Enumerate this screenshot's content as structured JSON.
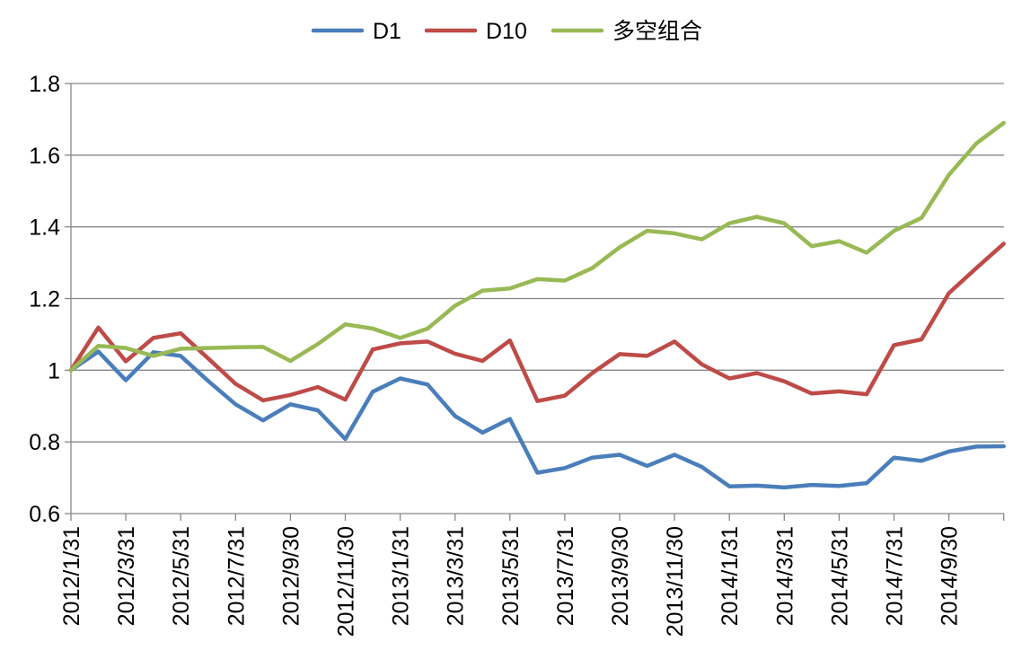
{
  "chart_data": {
    "type": "line",
    "title": "",
    "xlabel": "",
    "ylabel": "",
    "ylim": [
      0.6,
      1.8
    ],
    "yticks": [
      0.6,
      0.8,
      1,
      1.2,
      1.4,
      1.6,
      1.8
    ],
    "ytick_labels": [
      "0.6",
      "0.8",
      "1",
      "1.2",
      "1.4",
      "1.6",
      "1.8"
    ],
    "grid": "horizontal",
    "legend_position": "top",
    "x": [
      "2012/1/31",
      "2012/2/29",
      "2012/3/31",
      "2012/4/30",
      "2012/5/31",
      "2012/6/30",
      "2012/7/31",
      "2012/8/31",
      "2012/9/30",
      "2012/10/31",
      "2012/11/30",
      "2012/12/31",
      "2013/1/31",
      "2013/2/28",
      "2013/3/31",
      "2013/4/30",
      "2013/5/31",
      "2013/6/30",
      "2013/7/31",
      "2013/8/31",
      "2013/9/30",
      "2013/10/31",
      "2013/11/30",
      "2013/12/31",
      "2014/1/31",
      "2014/2/28",
      "2014/3/31",
      "2014/4/30",
      "2014/5/31",
      "2014/6/30",
      "2014/7/31",
      "2014/8/31",
      "2014/9/30",
      "2014/10/31",
      "2014/11/30"
    ],
    "x_tick_labels": [
      "2012/1/31",
      "2012/3/31",
      "2012/5/31",
      "2012/7/31",
      "2012/9/30",
      "2012/11/30",
      "2013/1/31",
      "2013/3/31",
      "2013/5/31",
      "2013/7/31",
      "2013/9/30",
      "2013/11/30",
      "2014/1/31",
      "2014/3/31",
      "2014/5/31",
      "2014/7/31",
      "2014/9/30"
    ],
    "series": [
      {
        "name": "D1",
        "color": "#4a7ebb",
        "values": [
          1.0,
          1.052,
          0.972,
          1.05,
          1.04,
          0.97,
          0.905,
          0.86,
          0.905,
          0.888,
          0.808,
          0.94,
          0.977,
          0.96,
          0.872,
          0.826,
          0.864,
          0.714,
          0.727,
          0.756,
          0.764,
          0.733,
          0.764,
          0.73,
          0.676,
          0.678,
          0.673,
          0.68,
          0.677,
          0.685,
          0.756,
          0.747,
          0.773,
          0.787,
          0.788
        ]
      },
      {
        "name": "D10",
        "color": "#be4b48",
        "values": [
          1.0,
          1.119,
          1.025,
          1.09,
          1.103,
          1.033,
          0.962,
          0.916,
          0.931,
          0.953,
          0.918,
          1.058,
          1.075,
          1.08,
          1.046,
          1.026,
          1.083,
          0.914,
          0.929,
          0.992,
          1.045,
          1.04,
          1.08,
          1.016,
          0.977,
          0.992,
          0.969,
          0.935,
          0.941,
          0.933,
          1.07,
          1.086,
          1.215,
          1.285,
          1.353
        ]
      },
      {
        "name": "多空组合",
        "color": "#98b954",
        "values": [
          1.0,
          1.068,
          1.062,
          1.04,
          1.06,
          1.062,
          1.064,
          1.065,
          1.026,
          1.073,
          1.128,
          1.116,
          1.09,
          1.116,
          1.18,
          1.222,
          1.228,
          1.254,
          1.25,
          1.285,
          1.343,
          1.389,
          1.382,
          1.365,
          1.41,
          1.428,
          1.41,
          1.346,
          1.36,
          1.328,
          1.389,
          1.425,
          1.545,
          1.633,
          1.69
        ]
      }
    ]
  }
}
